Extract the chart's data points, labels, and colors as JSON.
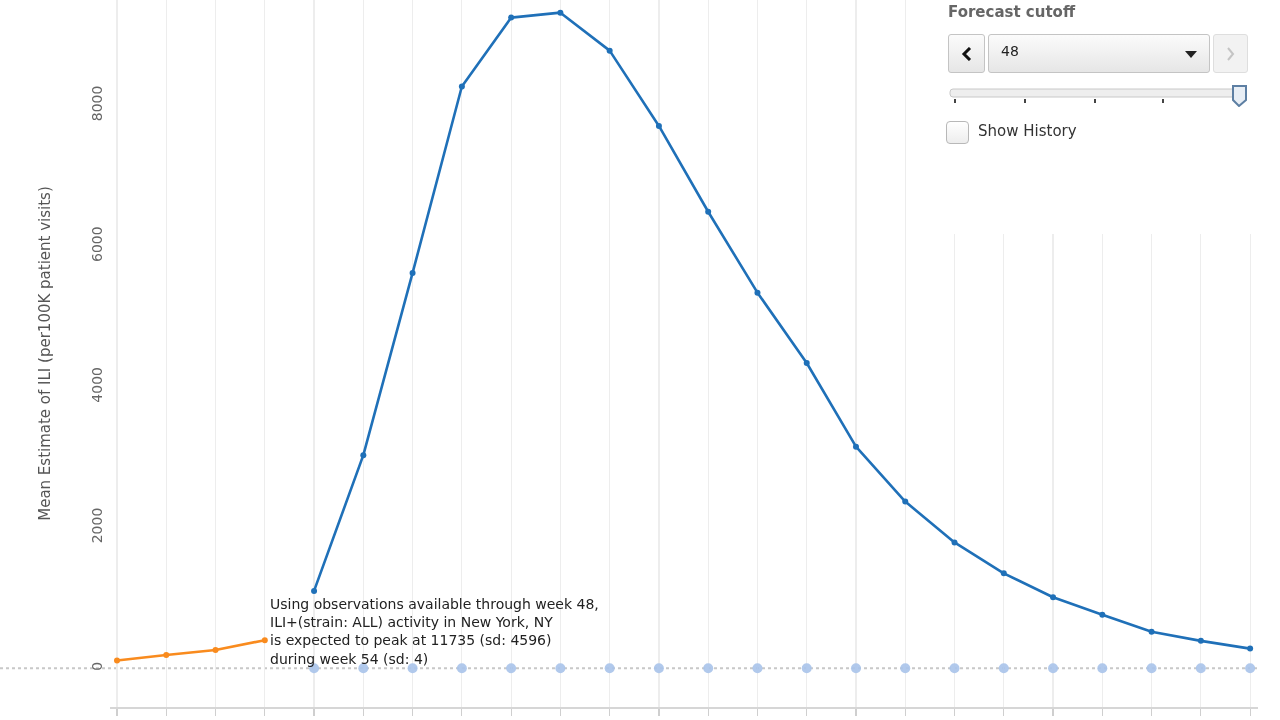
{
  "chart_data": {
    "type": "line",
    "ylabel": "Mean Estimate of ILI (per100K patient visits)",
    "categories": [
      null,
      null,
      null,
      null,
      null,
      null,
      null,
      null,
      null,
      null,
      null,
      null,
      null,
      null,
      null,
      null,
      null,
      null,
      null,
      null,
      null,
      null,
      null,
      null
    ],
    "series": [
      {
        "color": "#f98b1e",
        "values": [
          110,
          190,
          260,
          400,
          null,
          null,
          null,
          null,
          null,
          null,
          null,
          null,
          null,
          null,
          null,
          null,
          null,
          null,
          null,
          null,
          null,
          null,
          null,
          null
        ]
      },
      {
        "color": "#1f70b8",
        "values": [
          null,
          null,
          null,
          null,
          1100,
          3030,
          5620,
          8270,
          9250,
          9320,
          8780,
          7710,
          6490,
          5340,
          4340,
          3150,
          2370,
          1790,
          1350,
          1010,
          760,
          520,
          390,
          280
        ]
      },
      {
        "type": "scatter",
        "color": "#a9c3ea",
        "values": [
          null,
          null,
          null,
          null,
          0,
          0,
          0,
          0,
          0,
          0,
          0,
          0,
          0,
          0,
          0,
          0,
          0,
          0,
          0,
          0,
          0,
          0,
          0,
          0
        ]
      }
    ],
    "ylim": [
      -550,
      9500
    ],
    "yticks": [
      0,
      2000,
      4000,
      6000,
      8000
    ],
    "grid": "x",
    "tick_labels": "y",
    "marker": "circle",
    "line_style": "solid",
    "ref_lines": [
      {
        "axis": "y",
        "value": 0,
        "color": "#c8c8c8",
        "line_style": "dotted"
      }
    ],
    "annotations": [
      "Using observations available through week 48,\nILI+(strain: ALL) activity in New York, NY\nis expected to peak at 11735 (sd: 4596)\nduring week 54 (sd: 4)",
      "Forecast cutoff",
      "48",
      "Show History"
    ]
  }
}
